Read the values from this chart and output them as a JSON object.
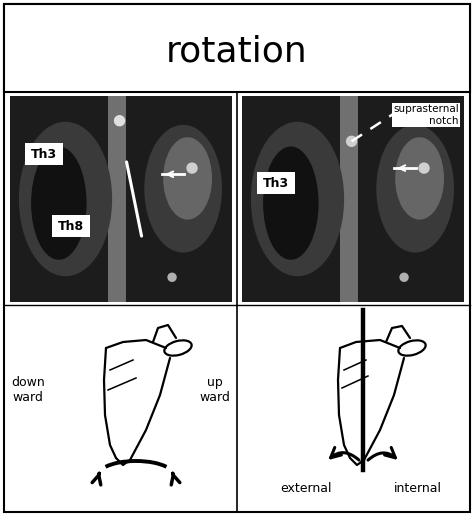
{
  "title": "rotation",
  "title_fontsize": 26,
  "bg_color": "#ffffff",
  "th3_label": "Th3",
  "th8_label": "Th8",
  "suprasternal_label": "suprasternal\nnotch",
  "down_ward": "down\nward",
  "up_ward": "up\nward",
  "external": "external",
  "internal": "internal",
  "fig_w": 4.74,
  "fig_h": 5.16,
  "dpi": 100
}
